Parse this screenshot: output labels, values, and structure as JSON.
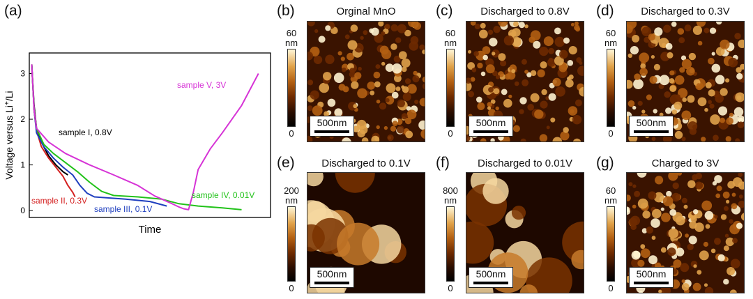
{
  "chart_data": {
    "type": "line",
    "panel_letter": "(a)",
    "xlabel": "Time",
    "ylabel_parts": [
      "Voltage versus Li",
      "+",
      "/Li"
    ],
    "ylim": [
      -0.15,
      3.45
    ],
    "xlim": [
      0,
      100
    ],
    "yticks": [
      "0",
      "1",
      "2",
      "3"
    ],
    "grid": false,
    "series": [
      {
        "name": "sample I, 0.8V",
        "color": "#000000",
        "x": [
          1,
          2,
          3,
          5,
          8,
          11,
          14,
          16
        ],
        "y": [
          3.2,
          2.3,
          1.8,
          1.5,
          1.2,
          1.0,
          0.85,
          0.78
        ]
      },
      {
        "name": "sample II, 0.3V",
        "color": "#d42020",
        "x": [
          1,
          2,
          3,
          5,
          8,
          11,
          14,
          16,
          18,
          19
        ],
        "y": [
          3.2,
          2.2,
          1.75,
          1.4,
          1.15,
          0.95,
          0.75,
          0.55,
          0.4,
          0.3
        ]
      },
      {
        "name": "sample III, 0.1V",
        "color": "#1f3fbf",
        "x": [
          1,
          2,
          3,
          6,
          10,
          14,
          18,
          21,
          24,
          27,
          32,
          40,
          50,
          57
        ],
        "y": [
          3.2,
          2.2,
          1.7,
          1.4,
          1.15,
          0.95,
          0.78,
          0.55,
          0.38,
          0.3,
          0.28,
          0.25,
          0.2,
          0.1
        ]
      },
      {
        "name": "sample IV, 0.01V",
        "color": "#22c21a",
        "x": [
          1,
          2,
          3,
          6,
          10,
          15,
          20,
          25,
          30,
          35,
          45,
          55,
          62,
          70,
          80,
          88
        ],
        "y": [
          3.2,
          2.2,
          1.8,
          1.45,
          1.25,
          1.05,
          0.85,
          0.62,
          0.42,
          0.33,
          0.3,
          0.25,
          0.15,
          0.1,
          0.06,
          0.02
        ]
      },
      {
        "name": "sample V, 3V",
        "color": "#d633d6",
        "x": [
          1,
          2,
          3,
          8,
          15,
          25,
          35,
          45,
          52,
          58,
          62,
          64,
          66,
          68,
          70,
          75,
          80,
          88,
          95
        ],
        "y": [
          3.2,
          2.2,
          1.8,
          1.5,
          1.25,
          1.0,
          0.78,
          0.55,
          0.32,
          0.18,
          0.08,
          0.04,
          0.02,
          0.4,
          0.9,
          1.35,
          1.7,
          2.3,
          3.0
        ]
      }
    ]
  },
  "afm_panels": [
    {
      "letter": "(b)",
      "title": "Orginal MnO",
      "cb_top": "60",
      "cb_unit": "nm",
      "cb_bottom": "0",
      "scale": "500nm"
    },
    {
      "letter": "(c)",
      "title": "Discharged to 0.8V",
      "cb_top": "60",
      "cb_unit": "nm",
      "cb_bottom": "0",
      "scale": "500nm"
    },
    {
      "letter": "(d)",
      "title": "Discharged to 0.3V",
      "cb_top": "60",
      "cb_unit": "nm",
      "cb_bottom": "0",
      "scale": "500nm"
    },
    {
      "letter": "(e)",
      "title": "Discharged to 0.1V",
      "cb_top": "200",
      "cb_unit": "nm",
      "cb_bottom": "0",
      "scale": "500nm"
    },
    {
      "letter": "(f)",
      "title": "Discharged to 0.01V",
      "cb_top": "800",
      "cb_unit": "nm",
      "cb_bottom": "0",
      "scale": "500nm"
    },
    {
      "letter": "(g)",
      "title": "Charged to 3V",
      "cb_top": "60",
      "cb_unit": "nm",
      "cb_bottom": "0",
      "scale": "500nm"
    }
  ]
}
